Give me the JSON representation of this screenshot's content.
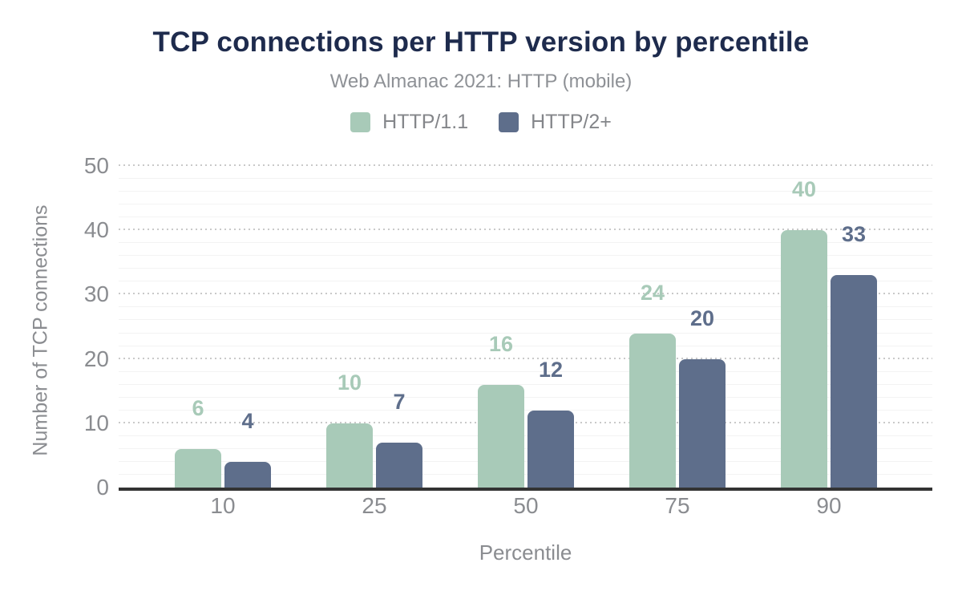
{
  "chart_data": {
    "type": "bar",
    "title": "TCP connections per HTTP version by percentile",
    "subtitle": "Web Almanac 2021: HTTP (mobile)",
    "categories": [
      "10",
      "25",
      "50",
      "75",
      "90"
    ],
    "series": [
      {
        "name": "HTTP/1.1",
        "color": "#a8cab8",
        "values": [
          6,
          10,
          16,
          24,
          40
        ]
      },
      {
        "name": "HTTP/2+",
        "color": "#5e6e8b",
        "values": [
          4,
          7,
          12,
          20,
          33
        ]
      }
    ],
    "xlabel": "Percentile",
    "ylabel": "Number of TCP connections",
    "ylim": [
      0,
      50
    ],
    "yticks": [
      0,
      10,
      20,
      30,
      40,
      50
    ],
    "grid": {
      "major_step": 10,
      "minor_step": 2,
      "major_style": "dotted",
      "minor_style": "solid"
    },
    "legend_position": "top",
    "colors": {
      "title": "#1e2b4d",
      "subtitle": "#8e9196",
      "legend_text": "#84868a",
      "axis_text": "#8a8c90",
      "axis_line": "#333333",
      "major_grid": "#c9c9c9",
      "minor_grid": "#f3f3f3",
      "background": "#ffffff"
    }
  }
}
